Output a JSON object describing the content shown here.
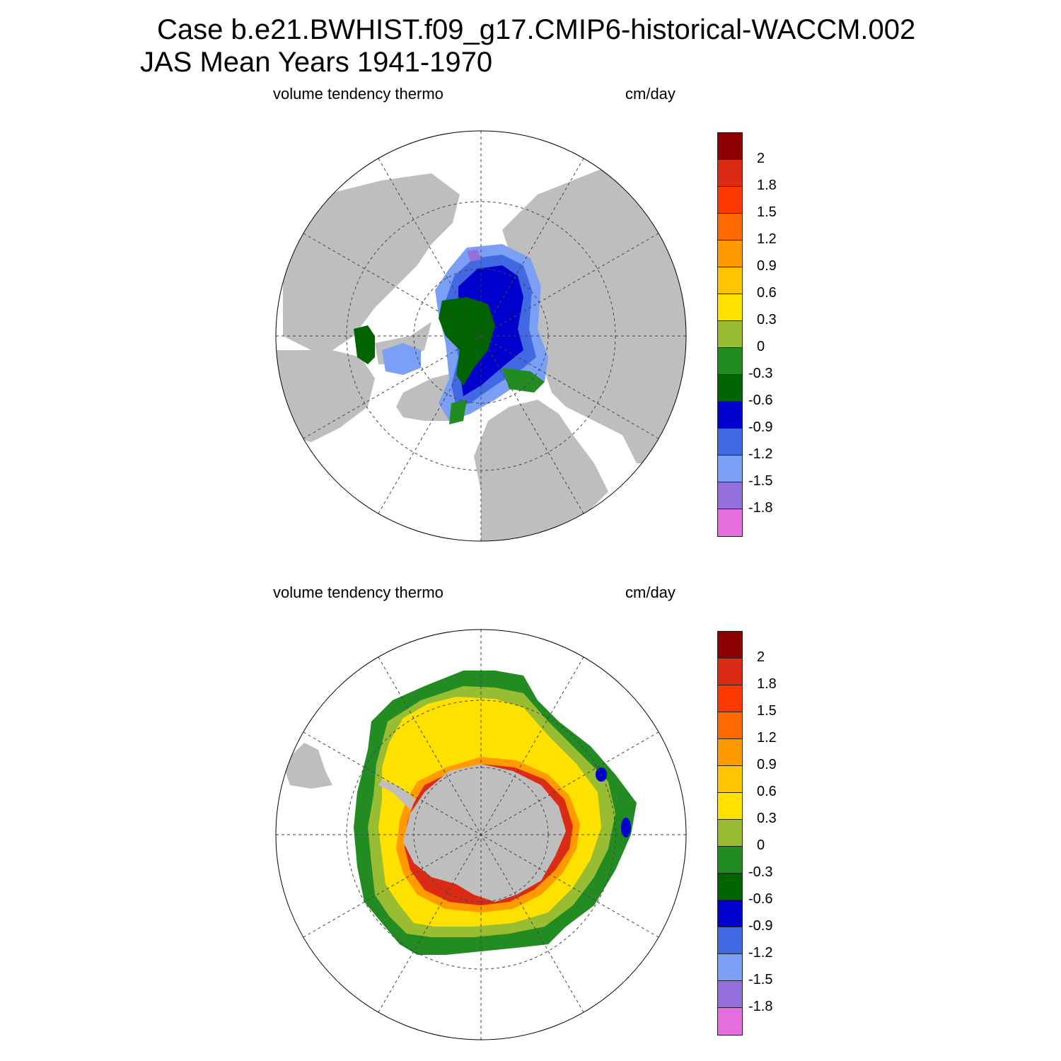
{
  "title_line1": "Case b.e21.BWHIST.f09_g17.CMIP6-historical-WACCM.002",
  "title_line2": "JAS Mean   Years 1941-1970",
  "panels": [
    {
      "id": "north",
      "variable": "volume tendency thermo",
      "units": "cm/day"
    },
    {
      "id": "south",
      "variable": "volume tendency thermo",
      "units": "cm/day"
    }
  ],
  "colorbar": {
    "colors": [
      "#8B0000",
      "#DC2B14",
      "#FF3A00",
      "#FF6A00",
      "#FF9A00",
      "#FFC400",
      "#FFE100",
      "#98BD33",
      "#228B22",
      "#006400",
      "#0000CD",
      "#4169E1",
      "#7B9FF5",
      "#9370DB",
      "#E66EDE"
    ],
    "labels": [
      "2",
      "1.8",
      "1.5",
      "1.2",
      "0.9",
      "0.6",
      "0.3",
      "0",
      "-0.3",
      "-0.6",
      "-0.9",
      "-1.2",
      "-1.5",
      "-1.8"
    ]
  },
  "map_colors": {
    "land": "#BEBEBE",
    "ocean": "#FFFFFF",
    "outline": "#000000"
  }
}
